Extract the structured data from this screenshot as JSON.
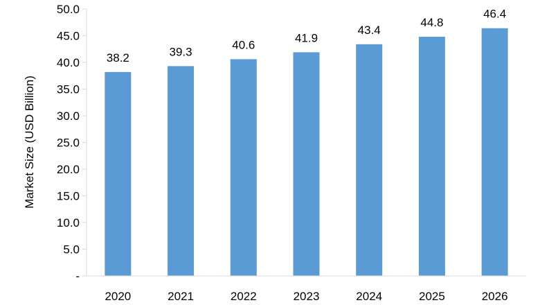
{
  "chart_data": {
    "type": "bar",
    "title": "",
    "xlabel": "",
    "ylabel": "Market Size (USD Billion)",
    "categories": [
      "2020",
      "2021",
      "2022",
      "2023",
      "2024",
      "2025",
      "2026"
    ],
    "values": [
      38.2,
      39.3,
      40.6,
      41.9,
      43.4,
      44.8,
      46.4
    ],
    "value_labels": [
      "38.2",
      "39.3",
      "40.6",
      "41.9",
      "43.4",
      "44.8",
      "46.4"
    ],
    "ylim": [
      0,
      50
    ],
    "yticks": [
      0,
      5,
      10,
      15,
      20,
      25,
      30,
      35,
      40,
      45,
      50
    ],
    "ytick_labels": [
      "-",
      "5.0",
      "10.0",
      "15.0",
      "20.0",
      "25.0",
      "30.0",
      "35.0",
      "40.0",
      "45.0",
      "50.0"
    ],
    "grid": false,
    "legend": "none",
    "colors": {
      "bar": "#5b9bd5",
      "axis": "#d9d9d9",
      "text": "#000000"
    }
  }
}
